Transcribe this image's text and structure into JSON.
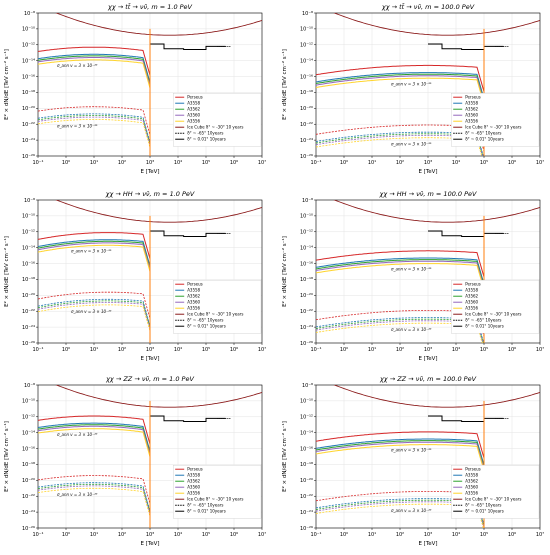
{
  "colors": {
    "perseus": "#d62728",
    "a3558": "#1f77b4",
    "a3562": "#2ca02c",
    "a3560": "#9467bd",
    "a3556": "#ffd42a",
    "icecube": "#000000",
    "dark_red": "#8b1a1a",
    "cutoff": "#ff7f0e",
    "grid": "#e3e3e3"
  },
  "axes": {
    "xlabel": "E [TeV]",
    "ylabel": "E² × dN/dE [TeV cm⁻² s⁻¹]",
    "x_tick_labels": [
      "10⁻¹",
      "10⁰",
      "10¹",
      "10²",
      "10³",
      "10⁴",
      "10⁵",
      "10⁶",
      "10⁷"
    ],
    "y_tick_labels": [
      "10⁻²⁶",
      "10⁻²⁴",
      "10⁻²²",
      "10⁻²⁰",
      "10⁻¹⁸",
      "10⁻¹⁶",
      "10⁻¹⁴",
      "10⁻¹²",
      "10⁻¹⁰",
      "10⁻⁸"
    ]
  },
  "legend_labels": {
    "perseus": "Perseus",
    "a3558": "A3558",
    "a3562": "A3562",
    "a3560": "A3560",
    "a3556": "A3556",
    "icecube": "Ice Cube δ° ~ -30° 10 years",
    "km3_65": "δ° ~ -65° 10years",
    "km3_001": "δ° ~ 0.01° 10years"
  },
  "annotation_text": "σ_ann v = 3 × 10⁻²⁶",
  "chart_data": [
    {
      "type": "line",
      "title": "χχ → tt̄ → νν̄, m = 1.0 PeV",
      "xlim": [
        -1,
        7
      ],
      "ylim": [
        -26,
        -8
      ],
      "log_scale": true,
      "legend_position": "center-right",
      "grid": true,
      "mass_log10_tev": 3,
      "upper_scale": 0,
      "lower_scale": -26,
      "peak_log10_e": 1,
      "peak_log10_flux": -13.2
    },
    {
      "type": "line",
      "title": "χχ → tt̄ → νν̄, m = 100.0 PeV",
      "xlim": [
        -1,
        7
      ],
      "ylim": [
        -26,
        -8
      ],
      "log_scale": true,
      "legend_position": "center-right",
      "grid": true,
      "mass_log10_tev": 5,
      "upper_scale": 0,
      "lower_scale": -26,
      "peak_log10_e": 3,
      "peak_log10_flux": -15.5
    },
    {
      "type": "line",
      "title": "χχ → HH → νν̄, m = 1.0 PeV",
      "xlim": [
        -1,
        7
      ],
      "ylim": [
        -26,
        -8
      ],
      "log_scale": true,
      "legend_position": "center-right",
      "grid": true,
      "mass_log10_tev": 3,
      "upper_scale": 0,
      "lower_scale": -26,
      "peak_log10_e": 1.5,
      "peak_log10_flux": -13.0
    },
    {
      "type": "line",
      "title": "χχ → HH → νν̄, m = 100.0 PeV",
      "xlim": [
        -1,
        7
      ],
      "ylim": [
        -26,
        -8
      ],
      "log_scale": true,
      "legend_position": "center-right",
      "grid": true,
      "mass_log10_tev": 5,
      "upper_scale": 0,
      "lower_scale": -26,
      "peak_log10_e": 3,
      "peak_log10_flux": -15.3
    },
    {
      "type": "line",
      "title": "χχ → ZZ → νν̄, m = 1.0 PeV",
      "xlim": [
        -1,
        7
      ],
      "ylim": [
        -26,
        -8
      ],
      "log_scale": true,
      "legend_position": "center-right",
      "grid": true,
      "mass_log10_tev": 3,
      "upper_scale": 0,
      "lower_scale": -26,
      "peak_log10_e": 1,
      "peak_log10_flux": -12.8
    },
    {
      "type": "line",
      "title": "χχ → ZZ → νν̄, m = 100.0 PeV",
      "xlim": [
        -1,
        7
      ],
      "ylim": [
        -26,
        -8
      ],
      "log_scale": true,
      "legend_position": "center-right",
      "grid": true,
      "mass_log10_tev": 5,
      "upper_scale": 0,
      "lower_scale": -26,
      "peak_log10_e": 3,
      "peak_log10_flux": -14.8
    }
  ]
}
